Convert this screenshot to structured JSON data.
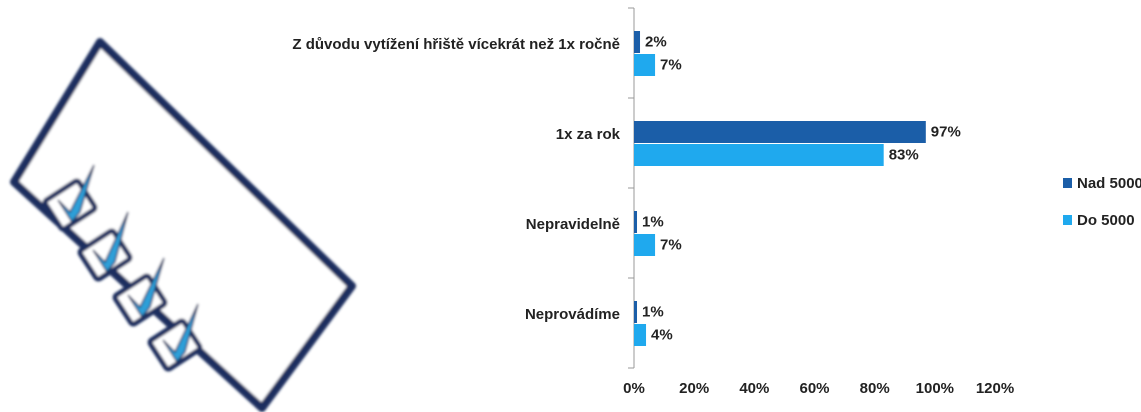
{
  "chart_data": {
    "type": "bar",
    "orientation": "horizontal",
    "categories": [
      "Z důvodu vytížení hřiště vícekrát než 1x ročně",
      "1x za rok",
      "Nepravidelně",
      "Neprovádíme"
    ],
    "series": [
      {
        "name": "Nad 5000",
        "color": "#1b5ea8",
        "values": [
          2,
          97,
          1,
          1
        ],
        "value_labels": [
          "2%",
          "97%",
          "1%",
          "1%"
        ]
      },
      {
        "name": "Do 5000",
        "color": "#1fa9ee",
        "values": [
          7,
          83,
          7,
          4
        ],
        "value_labels": [
          "7%",
          "83%",
          "7%",
          "4%"
        ]
      }
    ],
    "xlim": [
      0,
      120
    ],
    "xticks": [
      {
        "value": 0,
        "label": "0%"
      },
      {
        "value": 20,
        "label": "20%"
      },
      {
        "value": 40,
        "label": "40%"
      },
      {
        "value": 60,
        "label": "60%"
      },
      {
        "value": 80,
        "label": "80%"
      },
      {
        "value": 100,
        "label": "100%"
      },
      {
        "value": 120,
        "label": "120%"
      }
    ],
    "legend": "right"
  }
}
